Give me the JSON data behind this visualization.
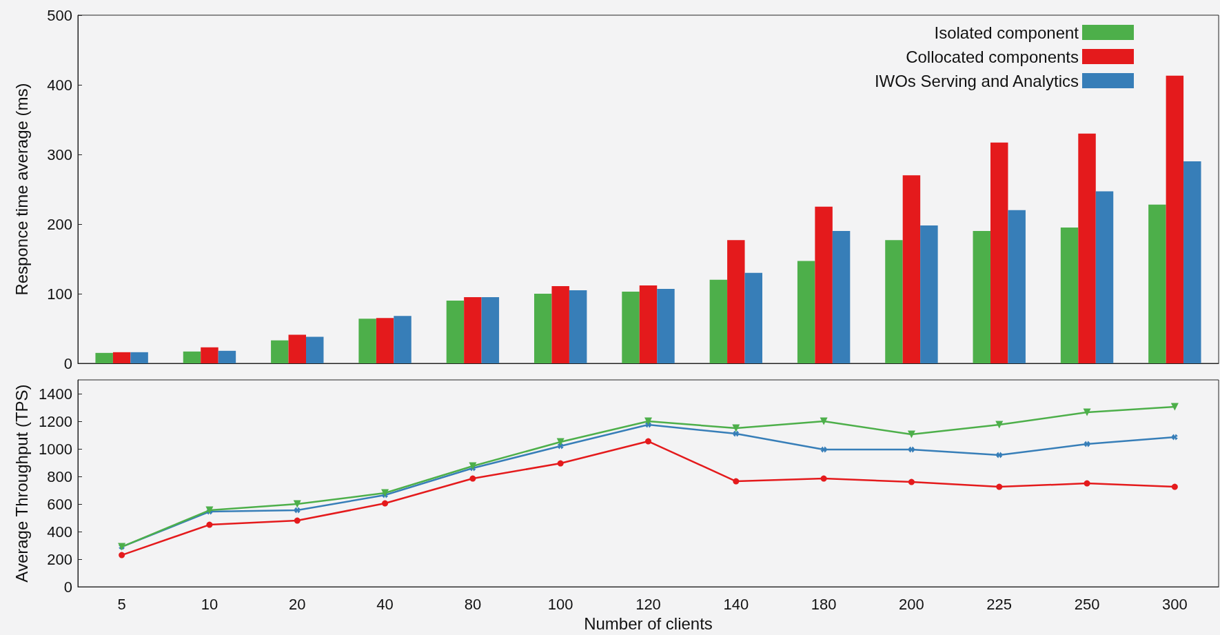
{
  "chart_data": [
    {
      "type": "bar",
      "ylabel": "Responce time average (ms)",
      "categories": [
        "5",
        "10",
        "20",
        "40",
        "80",
        "100",
        "120",
        "140",
        "180",
        "200",
        "225",
        "250",
        "300"
      ],
      "ylim": [
        0,
        500
      ],
      "yticks": [
        0,
        100,
        200,
        300,
        400,
        500
      ],
      "tick_labels": "y",
      "legend": "top right",
      "grid": false,
      "series": [
        {
          "name": "Isolated component",
          "color": "#4daf4a",
          "values": [
            15,
            17,
            33,
            64,
            90,
            100,
            103,
            120,
            147,
            177,
            190,
            195,
            228
          ]
        },
        {
          "name": "Collocated components",
          "color": "#e41a1c",
          "values": [
            16,
            23,
            41,
            65,
            95,
            111,
            112,
            177,
            225,
            270,
            317,
            330,
            413
          ]
        },
        {
          "name": "IWOs Serving and Analytics",
          "color": "#377eb8",
          "values": [
            16,
            18,
            38,
            68,
            95,
            105,
            107,
            130,
            190,
            198,
            220,
            247,
            290
          ]
        }
      ]
    },
    {
      "type": "line",
      "xlabel": "Number of clients",
      "ylabel": "Average Throughput (TPS)",
      "categories": [
        "5",
        "10",
        "20",
        "40",
        "80",
        "100",
        "120",
        "140",
        "180",
        "200",
        "225",
        "250",
        "300"
      ],
      "ylim": [
        0,
        1500
      ],
      "yticks": [
        0,
        200,
        400,
        600,
        800,
        1000,
        1200,
        1400
      ],
      "grid": false,
      "line_style": "solid",
      "series": [
        {
          "color": "#4daf4a",
          "marker": "triangle",
          "values": [
            290,
            555,
            600,
            680,
            875,
            1050,
            1200,
            1150,
            1200,
            1105,
            1175,
            1265,
            1305
          ]
        },
        {
          "color": "#e41a1c",
          "marker": "circle",
          "values": [
            230,
            450,
            480,
            605,
            785,
            895,
            1055,
            765,
            785,
            760,
            725,
            750,
            725
          ]
        },
        {
          "color": "#377eb8",
          "marker": "cross",
          "values": [
            290,
            545,
            555,
            665,
            860,
            1020,
            1175,
            1110,
            995,
            995,
            955,
            1035,
            1085
          ]
        }
      ]
    }
  ]
}
